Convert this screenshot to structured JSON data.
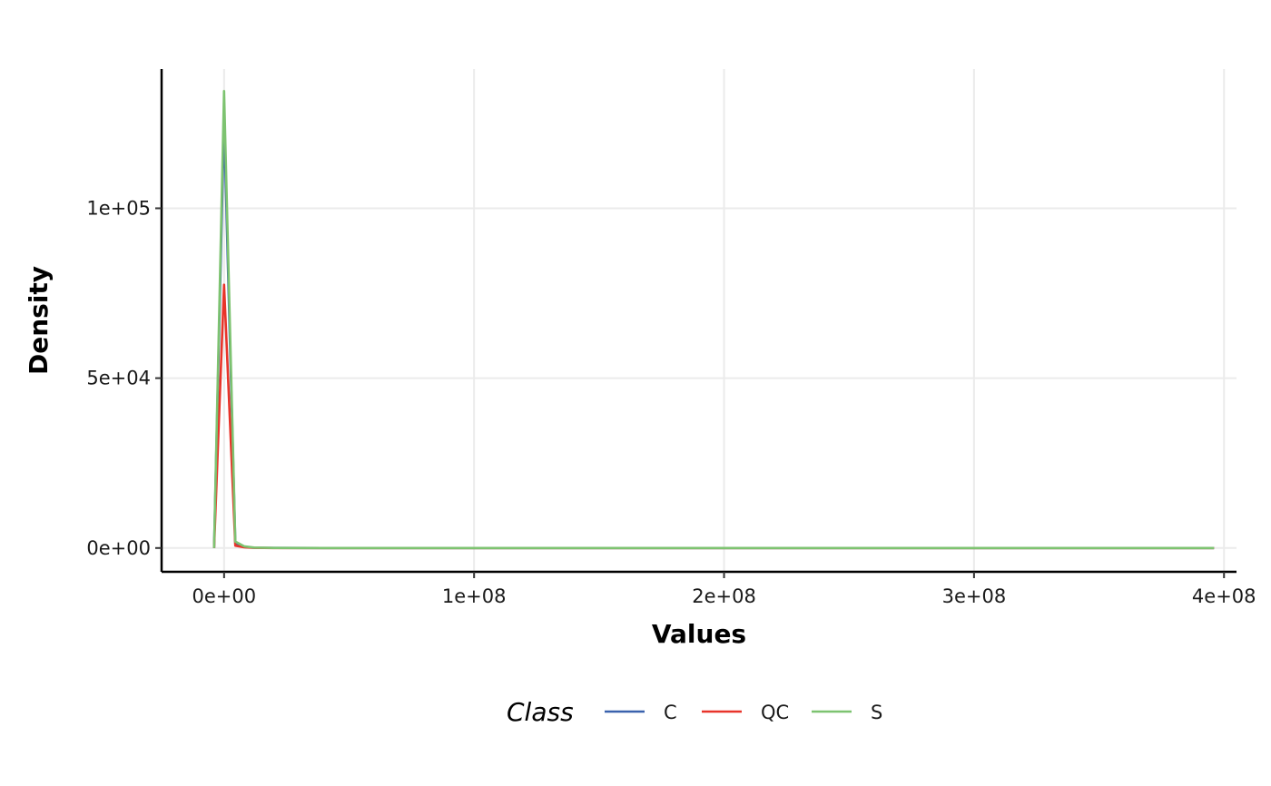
{
  "chart_data": {
    "type": "line",
    "title": "",
    "xlabel": "Values",
    "ylabel": "Density",
    "xlim": [
      -25000000,
      405000000
    ],
    "ylim": [
      -7000,
      141000
    ],
    "x_ticks": [
      {
        "value": 0,
        "label": "0e+00"
      },
      {
        "value": 100000000,
        "label": "1e+08"
      },
      {
        "value": 200000000,
        "label": "2e+08"
      },
      {
        "value": 300000000,
        "label": "3e+08"
      },
      {
        "value": 400000000,
        "label": "4e+08"
      }
    ],
    "y_ticks": [
      {
        "value": 0,
        "label": "0e+00"
      },
      {
        "value": 50000,
        "label": "5e+04"
      },
      {
        "value": 100000,
        "label": "1e+05"
      }
    ],
    "grid": true,
    "legend": {
      "title": "Class",
      "position": "bottom"
    },
    "series": [
      {
        "name": "C",
        "color": "#3a62ad",
        "x": [
          -4000000,
          0,
          4500000,
          8000000,
          12000000,
          20000000,
          40000000,
          100000000,
          200000000,
          300000000,
          396000000
        ],
        "y": [
          0,
          126000,
          1300,
          300,
          80,
          20,
          0,
          0,
          0,
          0,
          0
        ]
      },
      {
        "name": "QC",
        "color": "#e8342a",
        "x": [
          -4000000,
          0,
          4500000,
          8000000,
          12000000,
          20000000,
          40000000,
          100000000,
          200000000,
          300000000,
          396000000
        ],
        "y": [
          0,
          77500,
          700,
          200,
          50,
          10,
          0,
          0,
          0,
          0,
          0
        ]
      },
      {
        "name": "S",
        "color": "#7dc370",
        "x": [
          -4000000,
          0,
          4500000,
          8000000,
          12000000,
          20000000,
          40000000,
          100000000,
          200000000,
          300000000,
          396000000
        ],
        "y": [
          0,
          134500,
          1900,
          500,
          120,
          30,
          0,
          0,
          0,
          0,
          0
        ]
      }
    ]
  }
}
